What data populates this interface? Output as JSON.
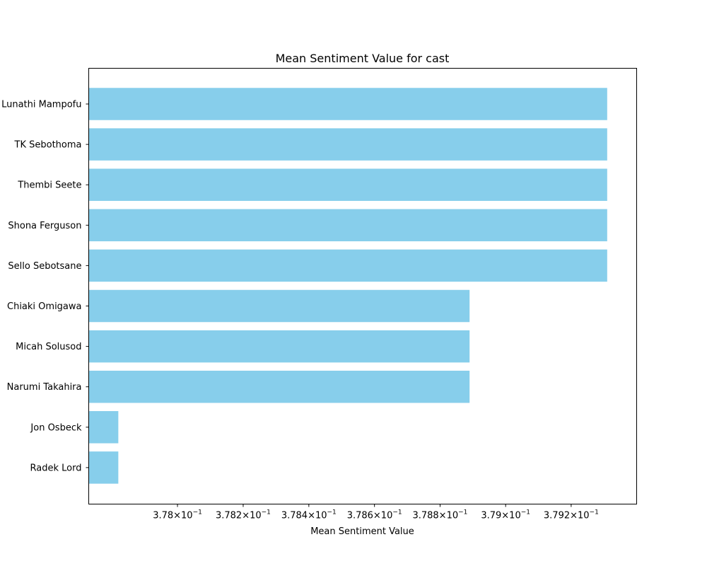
{
  "chart_data": {
    "type": "bar",
    "orientation": "horizontal",
    "title": "Mean Sentiment Value for cast",
    "xlabel": "Mean Sentiment Value",
    "ylabel": "",
    "x_scale": "log",
    "xlim": [
      0.37773,
      0.3794
    ],
    "x_ticks": [
      {
        "value": 0.378,
        "mantissa": "3.78",
        "exponent": "−1"
      },
      {
        "value": 0.3782,
        "mantissa": "3.782",
        "exponent": "−1"
      },
      {
        "value": 0.3784,
        "mantissa": "3.784",
        "exponent": "−1"
      },
      {
        "value": 0.3786,
        "mantissa": "3.786",
        "exponent": "−1"
      },
      {
        "value": 0.3788,
        "mantissa": "3.788",
        "exponent": "−1"
      },
      {
        "value": 0.379,
        "mantissa": "3.79",
        "exponent": "−1"
      },
      {
        "value": 0.3792,
        "mantissa": "3.792",
        "exponent": "−1"
      }
    ],
    "categories": [
      "Lunathi Mampofu",
      "TK Sebothoma",
      "Thembi Seete",
      "Shona Ferguson",
      "Sello Sebotsane",
      "Chiaki Omigawa",
      "Micah Solusod",
      "Narumi Takahira",
      "Jon Osbeck",
      "Radek Lord"
    ],
    "values": [
      0.37931,
      0.37931,
      0.37931,
      0.37931,
      0.37931,
      0.37889,
      0.37889,
      0.37889,
      0.37782,
      0.37782
    ],
    "bar_color": "#87ceeb",
    "grid": false,
    "legend": "none"
  }
}
